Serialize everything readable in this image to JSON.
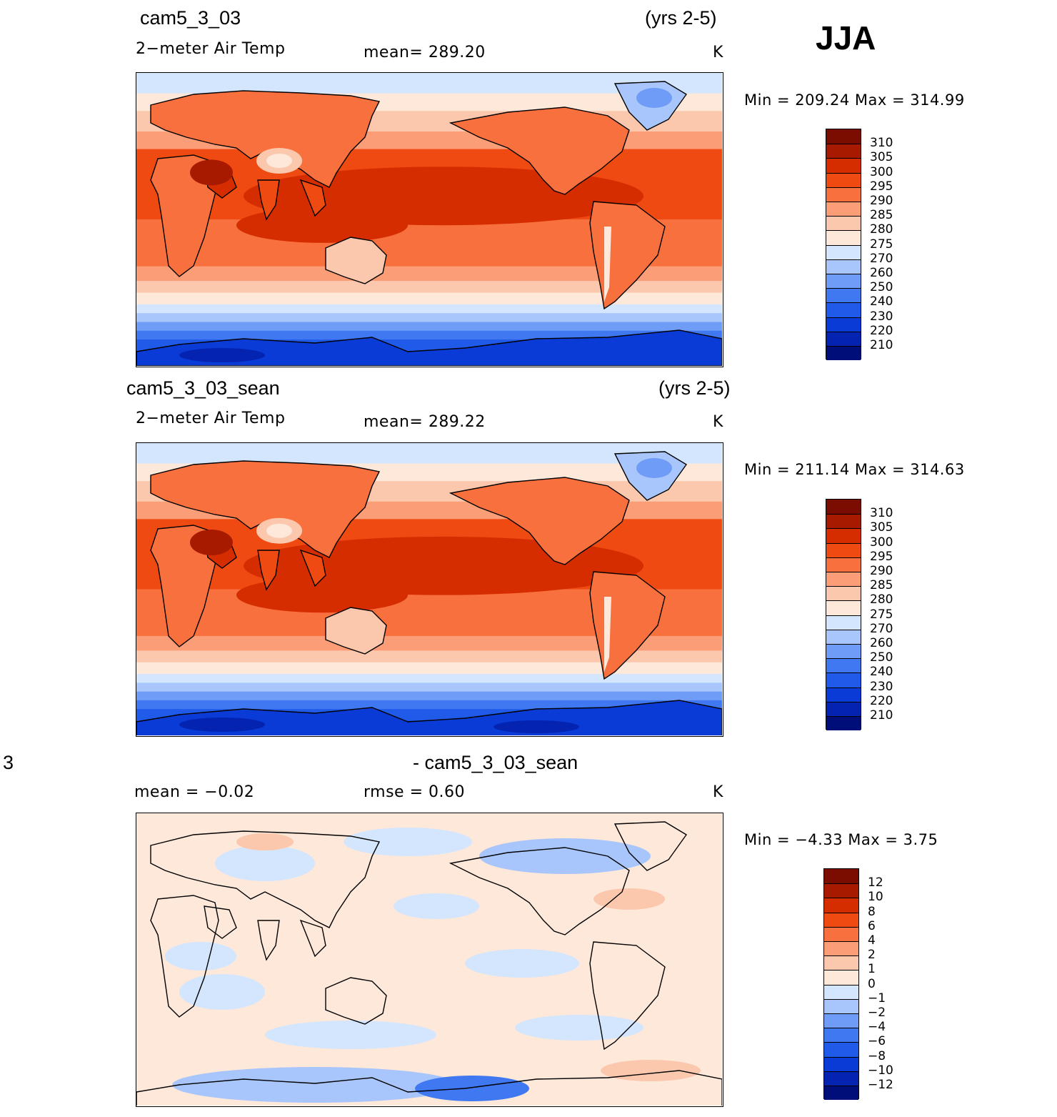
{
  "season": "JJA",
  "panels": [
    {
      "case": "cam5_3_03",
      "years": "(yrs 2-5)",
      "variable": "2−meter Air Temp",
      "stat": "mean=  289.20",
      "units": "K",
      "minmax": "Min  =  209.24  Max  =  314.99",
      "colorbar_labels": [
        "310",
        "305",
        "300",
        "295",
        "290",
        "285",
        "280",
        "275",
        "270",
        "260",
        "250",
        "240",
        "230",
        "220",
        "210"
      ]
    },
    {
      "case": "cam5_3_03_sean",
      "years": "(yrs 2-5)",
      "variable": "2−meter Air Temp",
      "stat": "mean=  289.22",
      "units": "K",
      "minmax": "Min  =  211.14  Max  =  314.63",
      "colorbar_labels": [
        "310",
        "305",
        "300",
        "295",
        "290",
        "285",
        "280",
        "275",
        "270",
        "260",
        "250",
        "240",
        "230",
        "220",
        "210"
      ]
    },
    {
      "left_text": "3",
      "case": "- cam5_3_03_sean",
      "mean": "mean  =    −0.02",
      "rmse": "rmse  =     0.60",
      "units": "K",
      "minmax": "Min  =    −4.33  Max  =     3.75",
      "colorbar_labels": [
        "12",
        "10",
        "8",
        "6",
        "4",
        "2",
        "1",
        "0",
        "−1",
        "−2",
        "−4",
        "−6",
        "−8",
        "−10",
        "−12"
      ]
    }
  ],
  "colors": {
    "scale": [
      "#000e7a",
      "#0323b0",
      "#0a3bd6",
      "#1f5ae8",
      "#3f78f0",
      "#6e9cf6",
      "#a8c6fb",
      "#d3e6fd",
      "#fde8da",
      "#fcc8ad",
      "#fb9e78",
      "#f8703e",
      "#ee4a12",
      "#d62d00",
      "#a81a00",
      "#7a0d00"
    ]
  },
  "chart_data": [
    {
      "type": "heatmap",
      "title": "cam5_3_03",
      "subtitle": "2−meter Air Temp",
      "units": "K",
      "mean": 289.2,
      "min": 209.24,
      "max": 314.99,
      "contour_levels": [
        210,
        220,
        230,
        240,
        250,
        260,
        270,
        275,
        280,
        285,
        290,
        295,
        300,
        305,
        310
      ]
    },
    {
      "type": "heatmap",
      "title": "cam5_3_03_sean",
      "subtitle": "2−meter Air Temp",
      "units": "K",
      "mean": 289.22,
      "min": 211.14,
      "max": 314.63,
      "contour_levels": [
        210,
        220,
        230,
        240,
        250,
        260,
        270,
        275,
        280,
        285,
        290,
        295,
        300,
        305,
        310
      ]
    },
    {
      "type": "heatmap",
      "title": "- cam5_3_03_sean",
      "units": "K",
      "mean": -0.02,
      "rmse": 0.6,
      "min": -4.33,
      "max": 3.75,
      "contour_levels": [
        -12,
        -10,
        -8,
        -6,
        -4,
        -2,
        -1,
        0,
        1,
        2,
        4,
        6,
        8,
        10,
        12
      ]
    }
  ]
}
